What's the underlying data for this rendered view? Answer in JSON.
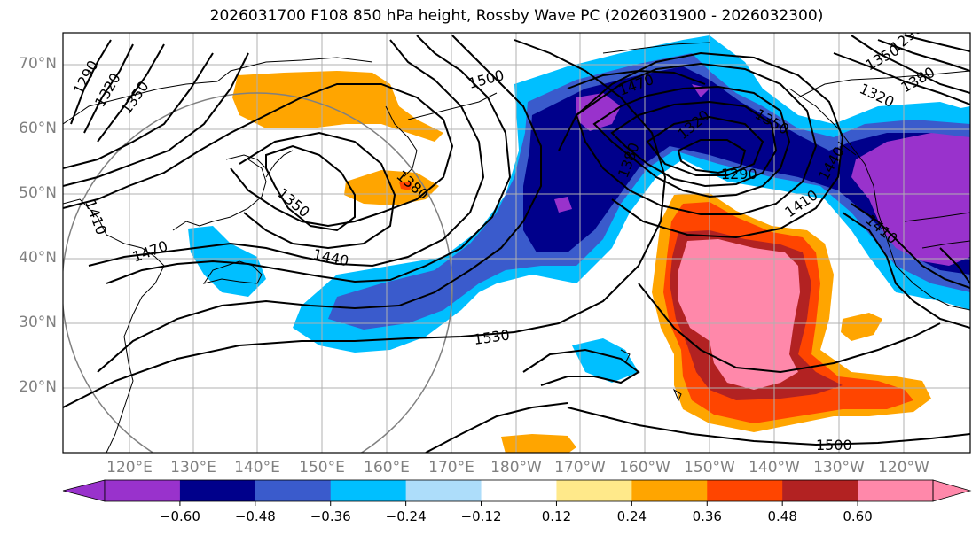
{
  "title": "2026031700 F108 850 hPa height, Rossby Wave PC (2026031900 - 2026032300)",
  "lat_labels": [
    "70°N",
    "60°N",
    "50°N",
    "40°N",
    "30°N",
    "20°N"
  ],
  "lon_labels": [
    "120°E",
    "130°E",
    "140°E",
    "150°E",
    "160°E",
    "170°E",
    "180°W",
    "170°W",
    "160°W",
    "150°W",
    "140°W",
    "130°W",
    "120°W"
  ],
  "contour_labels": [
    "1290",
    "1320",
    "1350",
    "1500",
    "1470",
    "1320",
    "1350",
    "1380",
    "1290",
    "1380",
    "1410",
    "1350",
    "1440",
    "1470",
    "1410",
    "1530",
    "1500",
    "1440",
    "1410",
    "1320",
    "1290",
    "1350",
    "1380",
    "1530"
  ],
  "colorbar": {
    "ticks": [
      "−0.60",
      "−0.48",
      "−0.36",
      "−0.24",
      "−0.12",
      "0.12",
      "0.24",
      "0.36",
      "0.48",
      "0.60"
    ],
    "colors": [
      "#9932CC",
      "#00008B",
      "#3A5BCC",
      "#00BFFF",
      "#ADDDFA",
      "#FFFFFF",
      "#FFE98A",
      "#FFA500",
      "#FF4500",
      "#B22222",
      "#FF88AA"
    ],
    "extend_low_color": "#9932CC",
    "extend_high_color": "#FF88AA"
  }
}
